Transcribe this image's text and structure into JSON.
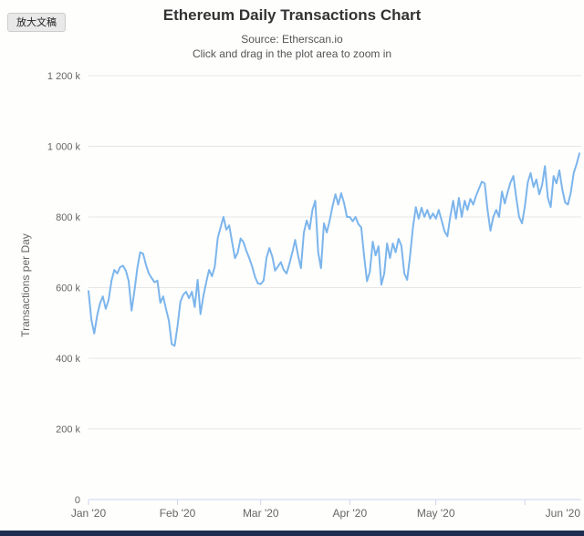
{
  "overlay_button": {
    "label": "放大文稿"
  },
  "chart": {
    "title": "Ethereum Daily Transactions Chart",
    "subtitle_source": "Source: Etherscan.io",
    "subtitle_hint": "Click and drag in the plot area to zoom in",
    "y_axis_title": "Transactions per Day"
  },
  "colors": {
    "line": "#7cb5ec",
    "grid": "#e6e6e6",
    "axis": "#ccd6eb",
    "tick_text": "#666666",
    "title_text": "#333333",
    "subtitle_text": "#555555",
    "badge_bg": "#e9e9e9",
    "bottom_bar": "#1f2d50"
  },
  "chart_data": {
    "type": "line",
    "title": "Ethereum Daily Transactions Chart",
    "subtitle": "Source: Etherscan.io",
    "annotation": "Click and drag in the plot area to zoom in",
    "ylabel": "Transactions per Day",
    "unit": "thousand transactions per day",
    "ylim": [
      0,
      1200
    ],
    "grid": true,
    "legend": "none",
    "y_ticks": [
      {
        "value": 0,
        "label": "0"
      },
      {
        "value": 200,
        "label": "200 k"
      },
      {
        "value": 400,
        "label": "400 k"
      },
      {
        "value": 600,
        "label": "600 k"
      },
      {
        "value": 800,
        "label": "800 k"
      },
      {
        "value": 1000,
        "label": "1 000 k"
      },
      {
        "value": 1200,
        "label": "1 200 k"
      }
    ],
    "x_ticks": [
      {
        "label": "Jan '20",
        "day": 0
      },
      {
        "label": "Feb '20",
        "day": 31
      },
      {
        "label": "Mar '20",
        "day": 60
      },
      {
        "label": "Apr '20",
        "day": 91
      },
      {
        "label": "May '20",
        "day": 121
      },
      {
        "label": "Jun '20",
        "day": 152
      }
    ],
    "point_interval": "1 day",
    "series": [
      {
        "name": "Transactions per Day",
        "color": "#7cb5ec",
        "values_k": [
          590,
          510,
          470,
          520,
          555,
          575,
          540,
          565,
          620,
          650,
          640,
          658,
          662,
          648,
          619,
          535,
          590,
          655,
          700,
          696,
          665,
          640,
          627,
          615,
          620,
          557,
          575,
          540,
          506,
          440,
          435,
          490,
          560,
          580,
          588,
          570,
          588,
          545,
          622,
          525,
          575,
          615,
          650,
          632,
          660,
          740,
          770,
          800,
          764,
          776,
          730,
          683,
          700,
          739,
          728,
          704,
          683,
          660,
          630,
          612,
          610,
          620,
          685,
          712,
          688,
          648,
          660,
          672,
          650,
          640,
          668,
          700,
          735,
          690,
          655,
          756,
          790,
          765,
          820,
          846,
          700,
          655,
          782,
          756,
          790,
          830,
          864,
          835,
          867,
          840,
          800,
          800,
          788,
          800,
          780,
          770,
          690,
          618,
          645,
          730,
          691,
          717,
          608,
          640,
          725,
          684,
          725,
          700,
          738,
          718,
          640,
          622,
          690,
          770,
          828,
          795,
          826,
          800,
          820,
          795,
          810,
          795,
          820,
          790,
          760,
          745,
          800,
          846,
          795,
          854,
          800,
          846,
          820,
          851,
          835,
          860,
          880,
          900,
          895,
          820,
          761,
          800,
          820,
          800,
          872,
          838,
          870,
          898,
          916,
          854,
          800,
          782,
          830,
          898,
          924,
          885,
          906,
          864,
          890,
          944,
          854,
          828,
          916,
          895,
          932,
          880,
          841,
          835,
          870,
          924,
          950,
          980
        ]
      }
    ]
  }
}
